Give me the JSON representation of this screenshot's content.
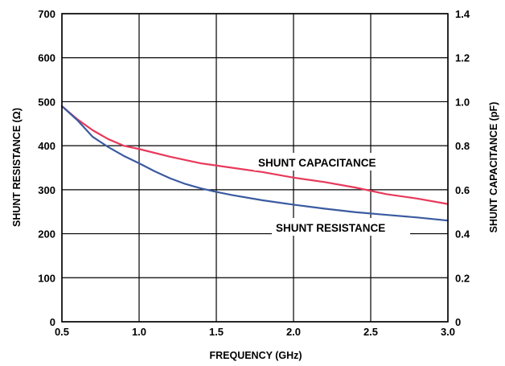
{
  "chart_data": {
    "type": "line",
    "title": "",
    "xlabel": "FREQUENCY (GHz)",
    "ylabel_left": "SHUNT RESISTANCE (Ω)",
    "ylabel_right": "SHUNT CAPACITANCE (pF)",
    "xlim": [
      0.5,
      3.0
    ],
    "ylim_left": [
      0,
      700
    ],
    "ylim_right": [
      0,
      1.4
    ],
    "x_ticks": [
      "0.5",
      "1.0",
      "1.5",
      "2.0",
      "2.5",
      "3.0"
    ],
    "y_left_ticks": [
      "0",
      "100",
      "200",
      "300",
      "400",
      "500",
      "600",
      "700"
    ],
    "y_right_ticks": [
      "0",
      "0.2",
      "0.4",
      "0.6",
      "0.8",
      "1.0",
      "1.2",
      "1.4"
    ],
    "grid": true,
    "series": [
      {
        "name": "SHUNT CAPACITANCE",
        "axis": "right",
        "color": "#e8395a",
        "x": [
          0.5,
          0.6,
          0.7,
          0.8,
          0.9,
          1.0,
          1.2,
          1.4,
          1.6,
          1.8,
          2.0,
          2.2,
          2.4,
          2.6,
          2.8,
          3.0
        ],
        "values": [
          0.98,
          0.92,
          0.87,
          0.83,
          0.8,
          0.785,
          0.75,
          0.72,
          0.7,
          0.68,
          0.655,
          0.635,
          0.61,
          0.58,
          0.56,
          0.535
        ]
      },
      {
        "name": "SHUNT RESISTANCE",
        "axis": "left",
        "color": "#3a5ba0",
        "x": [
          0.5,
          0.6,
          0.7,
          0.8,
          0.9,
          1.0,
          1.1,
          1.2,
          1.3,
          1.4,
          1.5,
          1.6,
          1.8,
          2.0,
          2.2,
          2.4,
          2.6,
          2.8,
          3.0
        ],
        "values": [
          490,
          458,
          420,
          397,
          377,
          360,
          342,
          326,
          313,
          303,
          295,
          288,
          276,
          266,
          257,
          249,
          243,
          237,
          230
        ]
      }
    ],
    "annotations": [
      "SHUNT CAPACITANCE",
      "SHUNT RESISTANCE"
    ]
  }
}
